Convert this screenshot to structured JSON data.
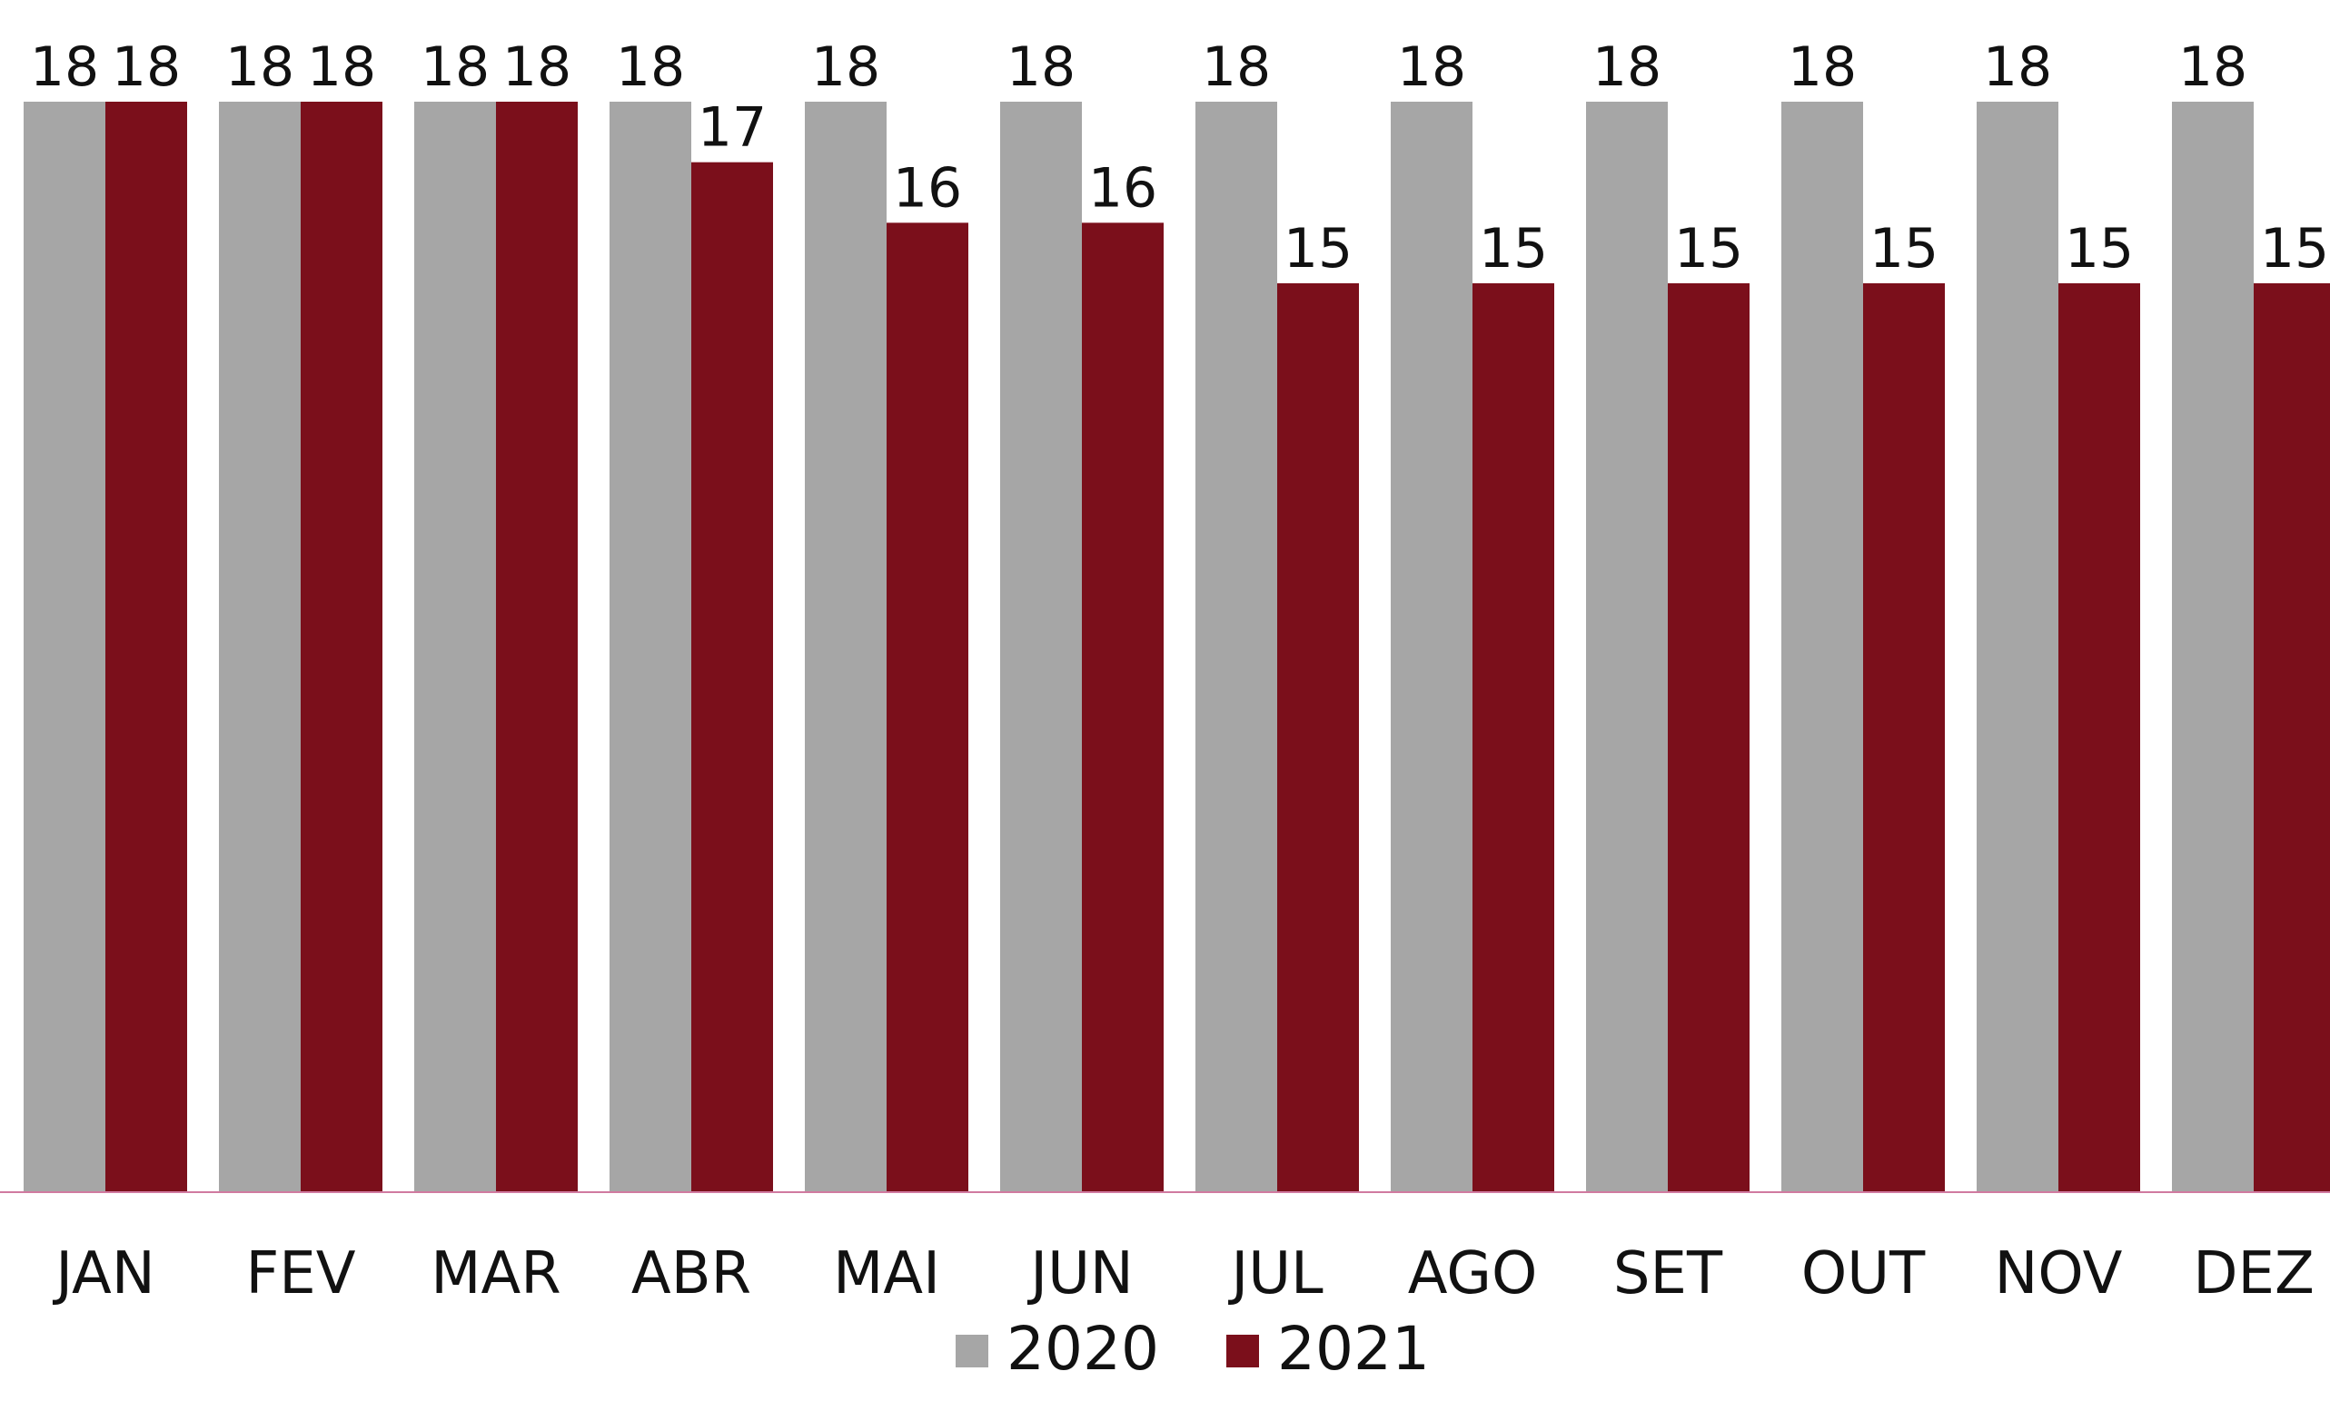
{
  "chart_data": {
    "type": "bar",
    "categories": [
      "JAN",
      "FEV",
      "MAR",
      "ABR",
      "MAI",
      "JUN",
      "JUL",
      "AGO",
      "SET",
      "OUT",
      "NOV",
      "DEZ"
    ],
    "series": [
      {
        "name": "2020",
        "color": "#a6a6a6",
        "values": [
          18,
          18,
          18,
          18,
          18,
          18,
          18,
          18,
          18,
          18,
          18,
          18
        ]
      },
      {
        "name": "2021",
        "color": "#7b0f1b",
        "values": [
          18,
          18,
          18,
          17,
          16,
          16,
          15,
          15,
          15,
          15,
          15,
          15
        ]
      }
    ],
    "ylim": [
      0,
      18
    ],
    "grid": false,
    "data_labels": true,
    "legend": "bottom-center",
    "baseline_color": "#d07aa0"
  }
}
